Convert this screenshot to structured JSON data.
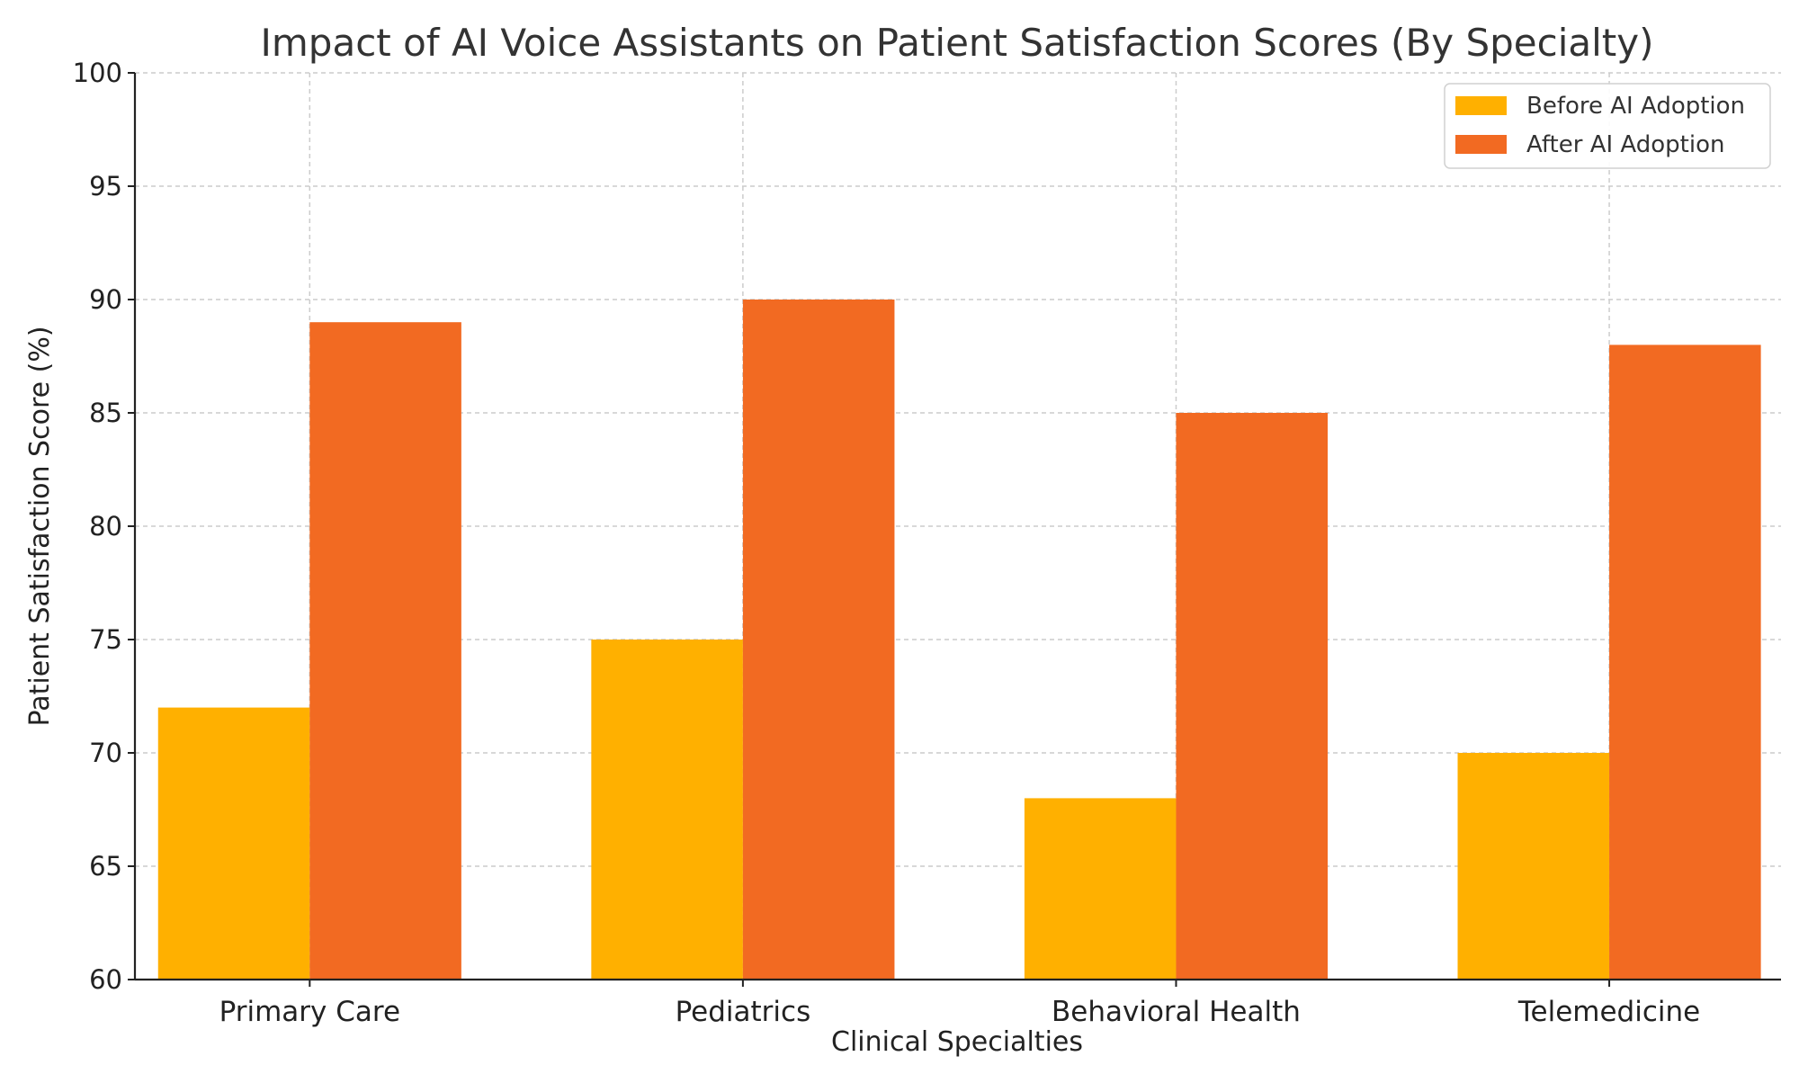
{
  "chart_data": {
    "type": "bar",
    "title": "Impact of AI Voice Assistants on Patient Satisfaction Scores (By Specialty)",
    "xlabel": "Clinical Specialties",
    "ylabel": "Patient Satisfaction Score (%)",
    "categories": [
      "Primary Care",
      "Pediatrics",
      "Behavioral Health",
      "Telemedicine"
    ],
    "series": [
      {
        "name": "Before AI Adoption",
        "values": [
          72,
          75,
          68,
          70
        ],
        "color": "#FFB000"
      },
      {
        "name": "After AI Adoption",
        "values": [
          89,
          90,
          85,
          88
        ],
        "color": "#F26A22"
      }
    ],
    "ylim": [
      60,
      100
    ],
    "yticks": [
      60,
      65,
      70,
      75,
      80,
      85,
      90,
      95,
      100
    ],
    "grid": true,
    "legend_position": "top-right"
  }
}
